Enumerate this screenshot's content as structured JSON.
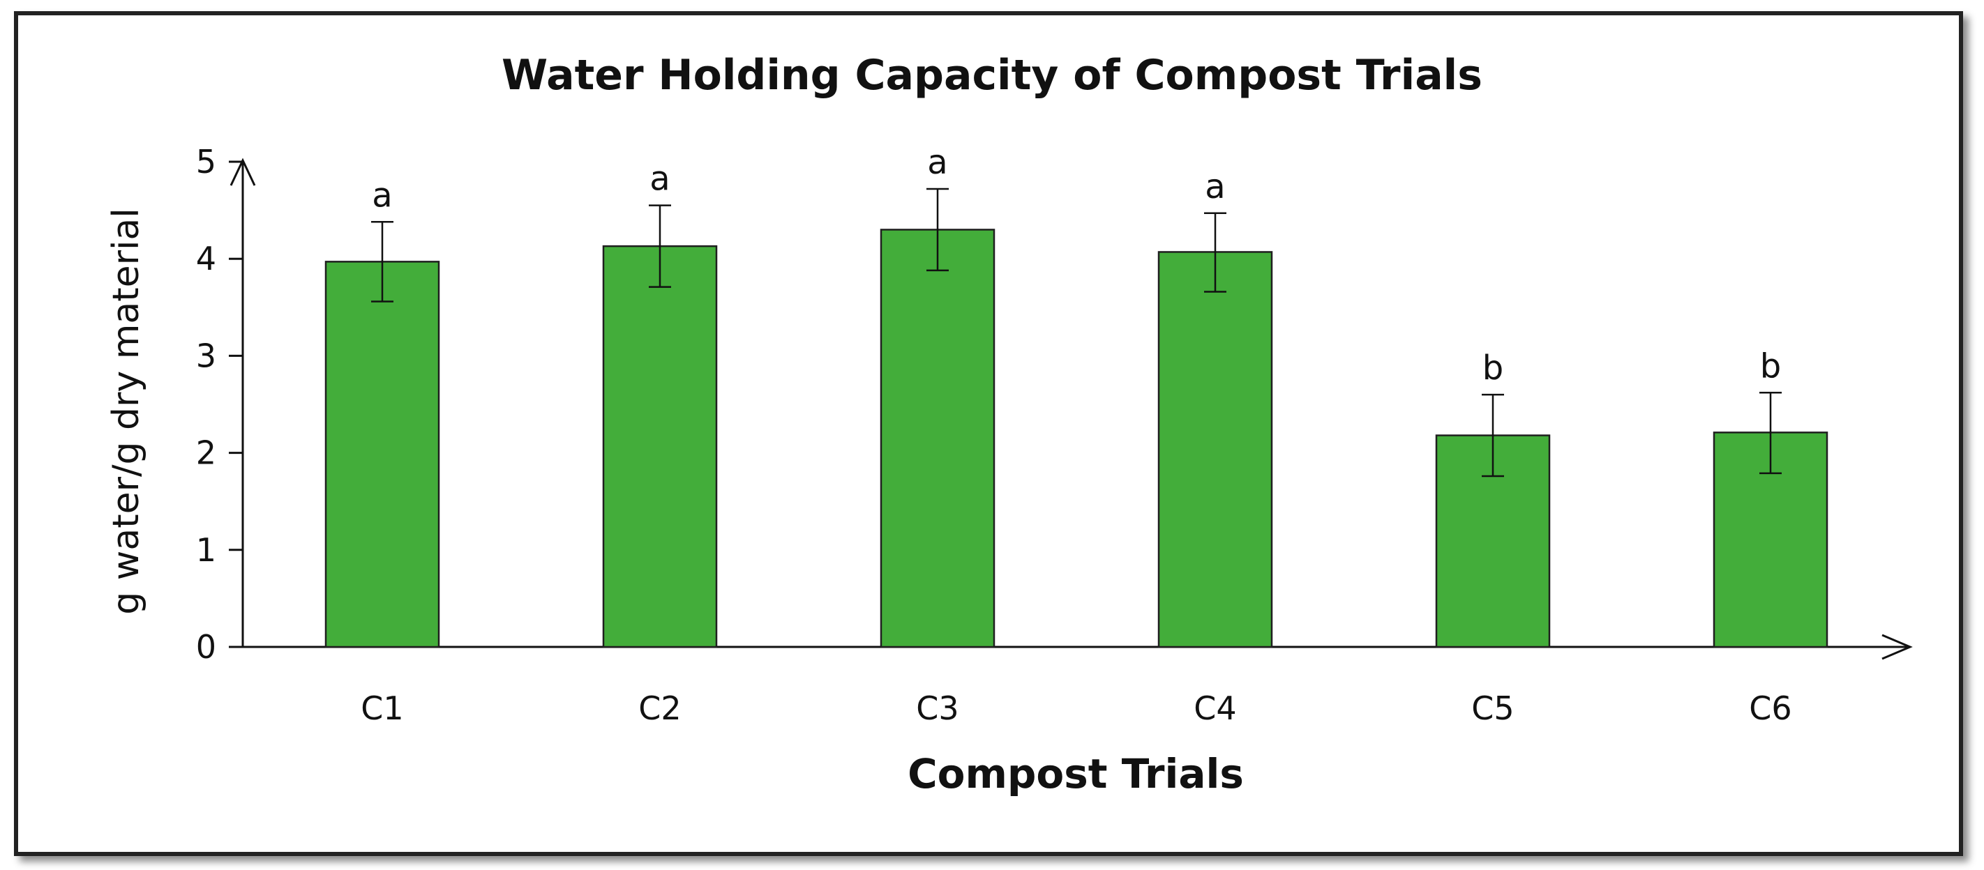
{
  "chart_data": {
    "type": "bar",
    "title": "Water Holding Capacity of Compost Trials",
    "xlabel": "Compost Trials",
    "ylabel": "g water/g dry material",
    "categories": [
      "C1",
      "C2",
      "C3",
      "C4",
      "C5",
      "C6"
    ],
    "values": [
      3.97,
      4.13,
      4.3,
      4.07,
      2.18,
      2.21
    ],
    "error_upper": [
      4.38,
      4.55,
      4.72,
      4.47,
      2.6,
      2.62
    ],
    "error_lower": [
      3.56,
      3.71,
      3.88,
      3.66,
      1.76,
      1.79
    ],
    "significance": [
      "a",
      "a",
      "a",
      "a",
      "b",
      "b"
    ],
    "y_ticks": [
      "0",
      "1",
      "2",
      "3",
      "4",
      "5"
    ],
    "ylim": [
      0,
      5
    ],
    "grid": false,
    "colors": {
      "bar": "#43ad3a",
      "bar_edge": "#1f1f1f",
      "axis": "#111111"
    }
  }
}
